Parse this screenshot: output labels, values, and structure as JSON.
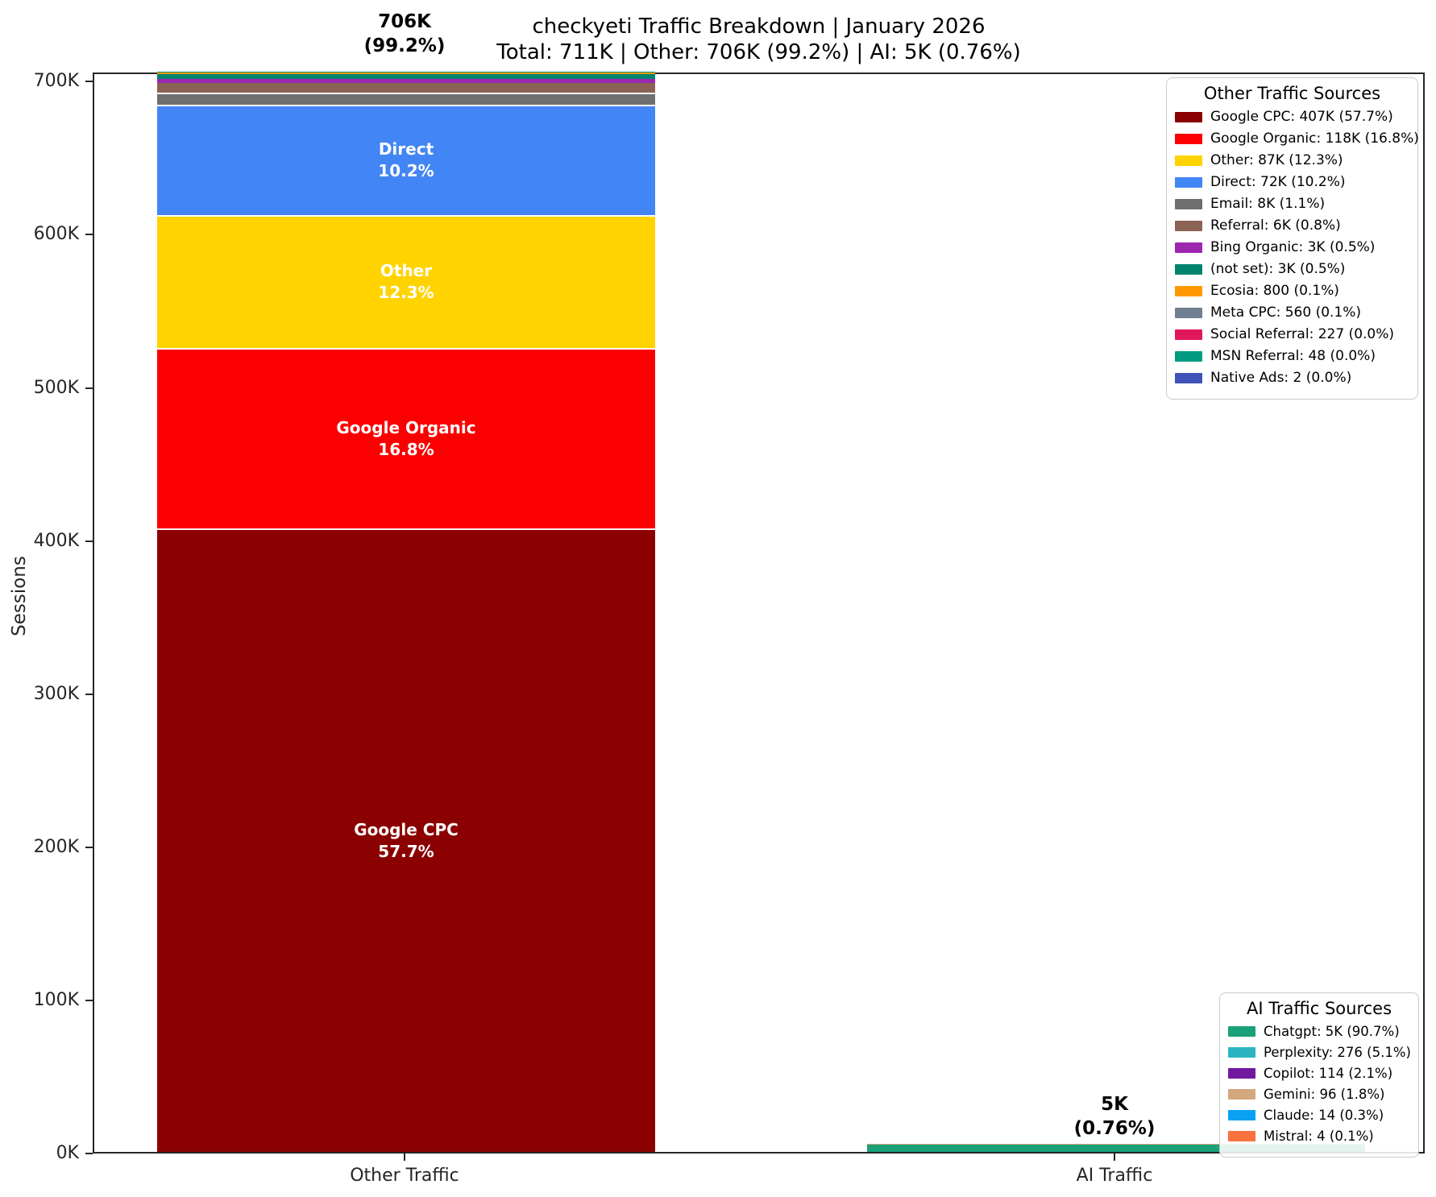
{
  "title": "checkyeti Traffic Breakdown | January 2026",
  "subtitle": "Total: 711K | Other: 706K (99.2%) | AI: 5K (0.76%)",
  "chart_data": {
    "type": "bar",
    "stacked": true,
    "title": "checkyeti Traffic Breakdown | January 2026",
    "subtitle": "Total: 711K | Other: 706K (99.2%) | AI: 5K (0.76%)",
    "xlabel": "",
    "ylabel": "Sessions",
    "ylim": [
      0,
      706000
    ],
    "grid": false,
    "categories": [
      "Other Traffic",
      "AI Traffic"
    ],
    "y_ticks": [
      {
        "value": 0,
        "label": "0K"
      },
      {
        "value": 100000,
        "label": "100K"
      },
      {
        "value": 200000,
        "label": "200K"
      },
      {
        "value": 300000,
        "label": "300K"
      },
      {
        "value": 400000,
        "label": "400K"
      },
      {
        "value": 500000,
        "label": "500K"
      },
      {
        "value": 600000,
        "label": "600K"
      },
      {
        "value": 700000,
        "label": "700K"
      }
    ],
    "stacks": [
      {
        "category": "Other Traffic",
        "total_value": 706000,
        "total_label_lines": [
          "706K",
          "(99.2%)"
        ],
        "segments": [
          {
            "name": "Google CPC",
            "value": 407000,
            "color": "#8B0000",
            "legend_label": "Google CPC: 407K (57.7%)",
            "bar_label_lines": [
              "Google CPC",
              "57.7%"
            ]
          },
          {
            "name": "Google Organic",
            "value": 118000,
            "color": "#FB0000",
            "legend_label": "Google Organic: 118K (16.8%)",
            "bar_label_lines": [
              "Google Organic",
              "16.8%"
            ]
          },
          {
            "name": "Other",
            "value": 87000,
            "color": "#FFD300",
            "legend_label": "Other: 87K (12.3%)",
            "bar_label_lines": [
              "Other",
              "12.3%"
            ]
          },
          {
            "name": "Direct",
            "value": 72000,
            "color": "#4285F4",
            "legend_label": "Direct: 72K (10.2%)",
            "bar_label_lines": [
              "Direct",
              "10.2%"
            ]
          },
          {
            "name": "Email",
            "value": 8000,
            "color": "#6F6F6F",
            "legend_label": "Email: 8K (1.1%)"
          },
          {
            "name": "Referral",
            "value": 6000,
            "color": "#8B6355",
            "legend_label": "Referral: 6K (0.8%)"
          },
          {
            "name": "Bing Organic",
            "value": 3000,
            "color": "#9C27B0",
            "legend_label": "Bing Organic: 3K (0.5%)"
          },
          {
            "name": "(not set)",
            "value": 3000,
            "color": "#00846F",
            "legend_label": "(not set): 3K (0.5%)"
          },
          {
            "name": "Ecosia",
            "value": 800,
            "color": "#FF9800",
            "legend_label": "Ecosia: 800 (0.1%)"
          },
          {
            "name": "Meta CPC",
            "value": 560,
            "color": "#708090",
            "legend_label": "Meta CPC: 560 (0.1%)"
          },
          {
            "name": "Social Referral",
            "value": 227,
            "color": "#E2165C",
            "legend_label": "Social Referral: 227 (0.0%)"
          },
          {
            "name": "MSN Referral",
            "value": 48,
            "color": "#009B81",
            "legend_label": "MSN Referral: 48 (0.0%)"
          },
          {
            "name": "Native Ads",
            "value": 2,
            "color": "#4053B8",
            "legend_label": "Native Ads: 2 (0.0%)"
          }
        ]
      },
      {
        "category": "AI Traffic",
        "total_value": 5413,
        "total_label_lines": [
          "5K",
          "(0.76%)"
        ],
        "segments": [
          {
            "name": "Chatgpt",
            "value": 4909,
            "color": "#1AA179",
            "legend_label": "Chatgpt: 5K (90.7%)"
          },
          {
            "name": "Perplexity",
            "value": 276,
            "color": "#2CB5C0",
            "legend_label": "Perplexity: 276 (5.1%)"
          },
          {
            "name": "Copilot",
            "value": 114,
            "color": "#71199F",
            "legend_label": "Copilot: 114 (2.1%)"
          },
          {
            "name": "Gemini",
            "value": 96,
            "color": "#D2A87C",
            "legend_label": "Gemini: 96 (1.8%)"
          },
          {
            "name": "Claude",
            "value": 14,
            "color": "#0AA1F2",
            "legend_label": "Claude: 14 (0.3%)"
          },
          {
            "name": "Mistral",
            "value": 4,
            "color": "#F8713F",
            "legend_label": "Mistral: 4 (0.1%)"
          }
        ]
      }
    ],
    "legends": [
      {
        "title": "Other Traffic Sources",
        "position": "top-right",
        "stack_index": 0
      },
      {
        "title": "AI Traffic Sources",
        "position": "bottom-right",
        "stack_index": 1
      }
    ]
  }
}
